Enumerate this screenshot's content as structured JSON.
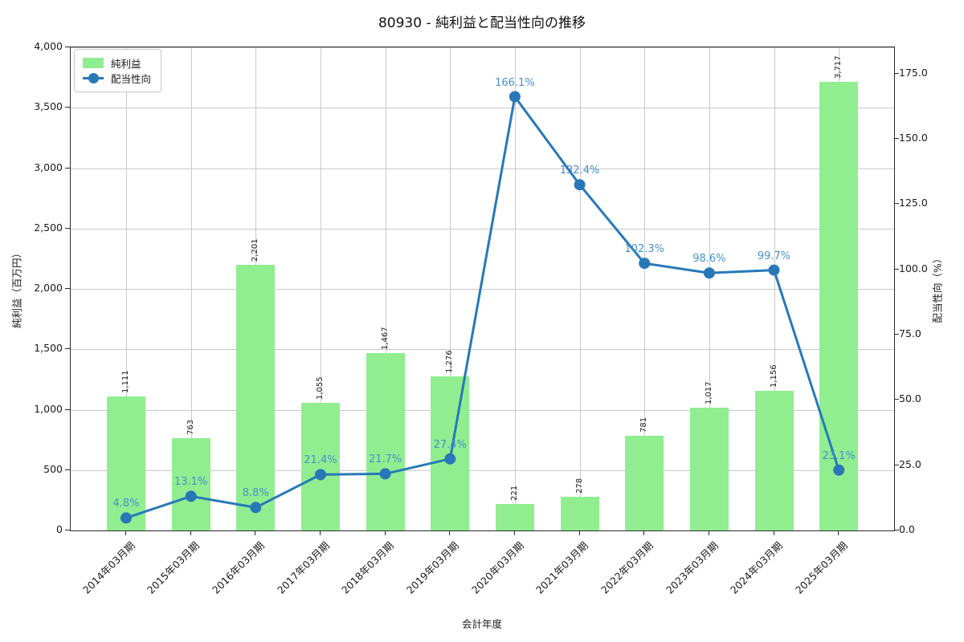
{
  "title": "80930 - 純利益と配当性向の推移",
  "legend": {
    "bar_label": "純利益",
    "line_label": "配当性向"
  },
  "axes": {
    "x_label": "会計年度",
    "y_left_label": "純利益（百万円）",
    "y_right_label": "配当性向（%）",
    "y_left_tick_labels": [
      "0",
      "500",
      "1,000",
      "1,500",
      "2,000",
      "2,500",
      "3,000",
      "3,500",
      "4,000"
    ],
    "y_right_tick_labels": [
      "0.0",
      "25.0",
      "50.0",
      "75.0",
      "100.0",
      "125.0",
      "150.0",
      "175.0"
    ]
  },
  "chart_data": {
    "type": "bar+line combo",
    "title": "80930 - 純利益と配当性向の推移",
    "xlabel": "会計年度",
    "ylabel_left": "純利益（百万円）",
    "ylabel_right": "配当性向（%）",
    "categories": [
      "2014年03月期",
      "2015年03月期",
      "2016年03月期",
      "2017年03月期",
      "2018年03月期",
      "2019年03月期",
      "2020年03月期",
      "2021年03月期",
      "2022年03月期",
      "2023年03月期",
      "2024年03月期",
      "2025年03月期"
    ],
    "series": [
      {
        "name": "純利益",
        "type": "bar",
        "axis": "left",
        "unit": "百万円",
        "values": [
          1111,
          763,
          2201,
          1055,
          1467,
          1276,
          221,
          278,
          781,
          1017,
          1156,
          3717
        ],
        "value_labels": [
          "1,111",
          "763",
          "2,201",
          "1,055",
          "1,467",
          "1,276",
          "221",
          "278",
          "781",
          "1,017",
          "1,156",
          "3,717"
        ]
      },
      {
        "name": "配当性向",
        "type": "line",
        "axis": "right",
        "unit": "%",
        "values": [
          4.8,
          13.1,
          8.8,
          21.4,
          21.7,
          27.4,
          166.1,
          132.4,
          102.3,
          98.6,
          99.7,
          23.1
        ],
        "value_labels": [
          "4.8%",
          "13.1%",
          "8.8%",
          "21.4%",
          "21.7%",
          "27.4%",
          "166.1%",
          "132.4%",
          "102.3%",
          "98.6%",
          "99.7%",
          "23.1%"
        ]
      }
    ],
    "ylim_left": [
      0,
      4000
    ],
    "ylim_right": [
      0,
      185
    ],
    "y_left_ticks": [
      0,
      500,
      1000,
      1500,
      2000,
      2500,
      3000,
      3500,
      4000
    ],
    "y_right_ticks": [
      0,
      25,
      50,
      75,
      100,
      125,
      150,
      175
    ],
    "grid": true,
    "legend_position": "upper-left",
    "x_tick_rotation_deg": 45
  },
  "colors": {
    "bar": "#90ee90",
    "line": "#2878b8",
    "point_label": "#4691c8",
    "bar_label": "#222222",
    "grid": "#c9c9c9",
    "spine": "#2b2b2b",
    "background": "#ffffff"
  }
}
